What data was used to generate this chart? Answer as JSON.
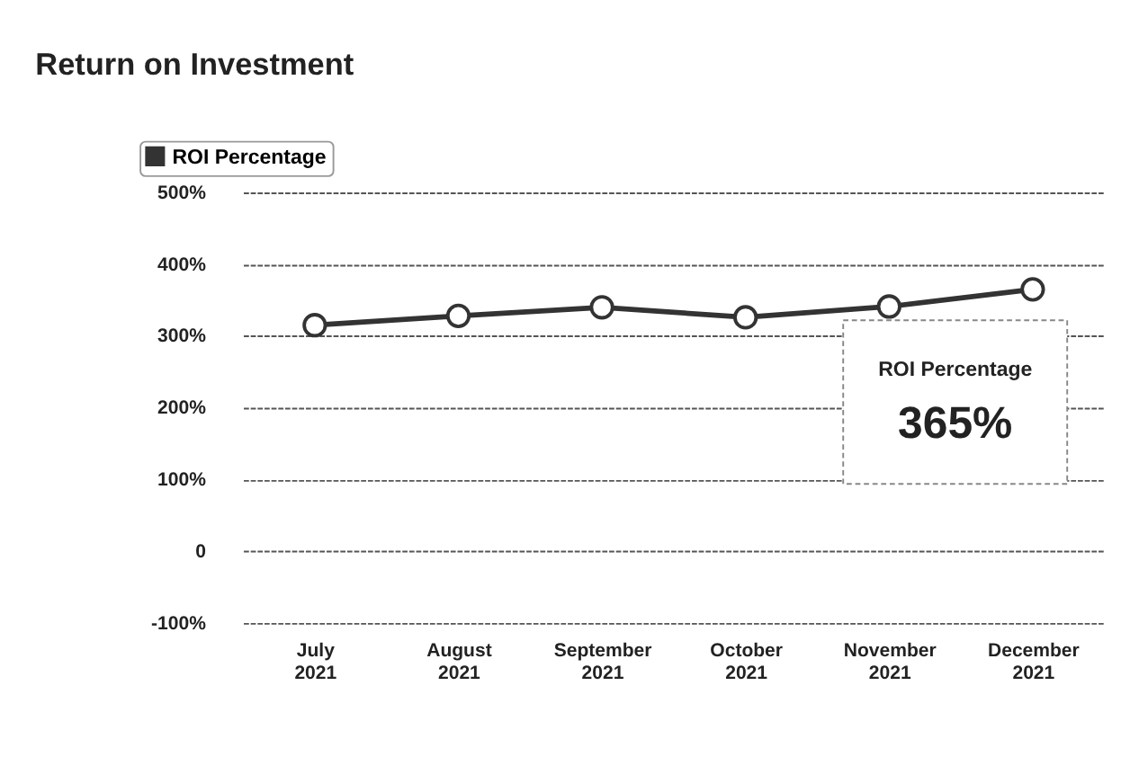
{
  "chart_data": {
    "type": "line",
    "title": "Return on Investment",
    "categories": [
      "July 2021",
      "August 2021",
      "September 2021",
      "October 2021",
      "November 2021",
      "December 2021"
    ],
    "series": [
      {
        "name": "ROI Percentage",
        "color": "#333333",
        "values": [
          315,
          328,
          340,
          326,
          341,
          365
        ]
      }
    ],
    "ylim": [
      -100,
      500
    ],
    "yticks": [
      {
        "value": -100,
        "label": "-100%"
      },
      0,
      {
        "value": 100,
        "label": "100%"
      },
      {
        "value": 200,
        "label": "200%"
      },
      {
        "value": 300,
        "label": "300%"
      },
      {
        "value": 400,
        "label": "400%"
      },
      {
        "value": 500,
        "label": "500%"
      }
    ],
    "grid": "y",
    "legend": "top left",
    "marker": "circle",
    "line_style": "solid",
    "annotations": [
      "ROI Percentage",
      "365%"
    ]
  }
}
